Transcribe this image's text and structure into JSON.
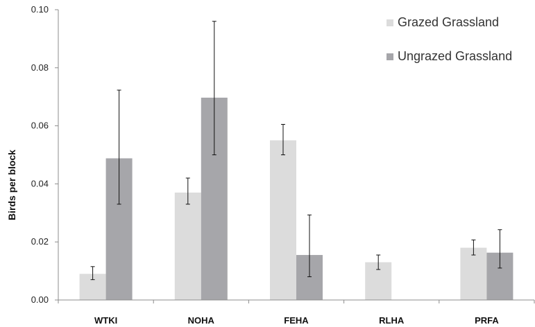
{
  "chart_data": {
    "type": "bar",
    "title": "",
    "xlabel": "",
    "ylabel": "Birds per block",
    "ylim": [
      0,
      0.1
    ],
    "yticks": [
      "0.00",
      "0.02",
      "0.04",
      "0.06",
      "0.08",
      "0.10"
    ],
    "categories": [
      "WTKI",
      "NOHA",
      "FEHA",
      "RLHA",
      "PRFA"
    ],
    "grid": false,
    "legend_position": "top-right",
    "series": [
      {
        "name": "Grazed Grassland",
        "color": "#dcdcdc",
        "values": [
          0.009,
          0.037,
          0.055,
          0.013,
          0.018
        ],
        "error_low": [
          0.007,
          0.033,
          0.05,
          0.0105,
          0.0155
        ],
        "error_high": [
          0.0115,
          0.042,
          0.0605,
          0.0155,
          0.0207
        ]
      },
      {
        "name": "Ungrazed Grassland",
        "color": "#a6a6aa",
        "values": [
          0.0488,
          0.0697,
          0.0155,
          0.0,
          0.0163
        ],
        "error_low": [
          0.033,
          0.05,
          0.008,
          0.0,
          0.011
        ],
        "error_high": [
          0.0723,
          0.096,
          0.0293,
          0.0,
          0.0242
        ]
      }
    ]
  }
}
